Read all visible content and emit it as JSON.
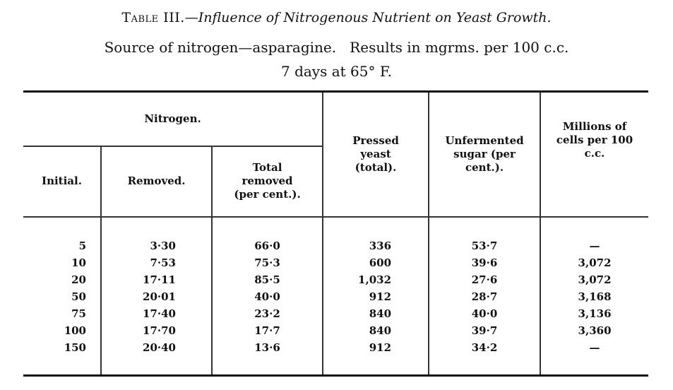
{
  "caption": {
    "label": "Table III.",
    "title": "—Influence of Nitrogenous Nutrient on Yeast Growth.",
    "subtitle": "Source of nitrogen—asparagine.   Results in mgrms. per 100 c.c.",
    "conditions": "7 days at 65° F."
  },
  "headers": {
    "group": "Nitrogen.",
    "initial": "Initial.",
    "removed": "Removed.",
    "total_removed": "Total removed (per cent.).",
    "pressed_yeast": "Pressed yeast (total).",
    "unfermented_sugar": "Unfermented sugar (per cent.).",
    "cells": "Millions of cells per 100 c.c."
  },
  "columns": {
    "initial": [
      "5",
      "10",
      "20",
      "50",
      "75",
      "100",
      "150"
    ],
    "removed": [
      "3·30",
      "7·53",
      "17·11",
      "20·01",
      "17·40",
      "17·70",
      "20·40"
    ],
    "total_removed": [
      "66·0",
      "75·3",
      "85·5",
      "40·0",
      "23·2",
      "17·7",
      "13·6"
    ],
    "pressed_yeast": [
      "336",
      "600",
      "1,032",
      "912",
      "840",
      "840",
      "912"
    ],
    "unfermented_sugar": [
      "53·7",
      "39·6",
      "27·6",
      "28·7",
      "40·0",
      "39·7",
      "34·2"
    ],
    "cells": [
      "—",
      "3,072",
      "3,072",
      "3,168",
      "3,136",
      "3,360",
      "—"
    ]
  }
}
